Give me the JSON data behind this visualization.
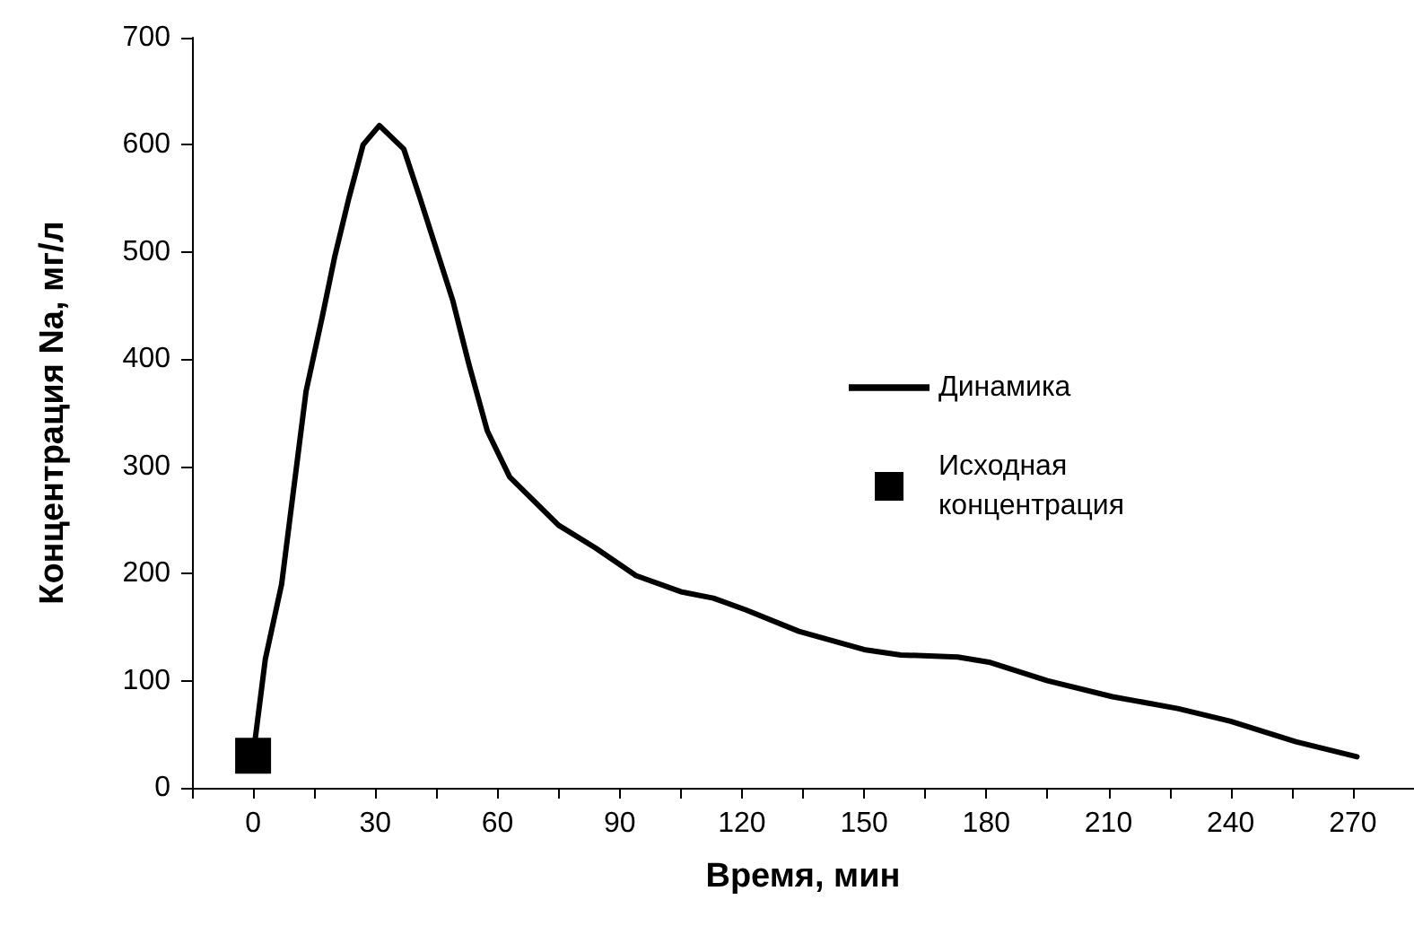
{
  "chart_data": {
    "type": "line",
    "xlabel": "Время, мин",
    "ylabel": "Концентрация Na, мг/л",
    "xlim": [
      -15,
      285
    ],
    "ylim": [
      0,
      700
    ],
    "xticks": [
      {
        "value": -15,
        "label": null
      },
      0,
      {
        "value": 15,
        "label": null
      },
      30,
      {
        "value": 45,
        "label": null
      },
      60,
      {
        "value": 75,
        "label": null
      },
      90,
      {
        "value": 105,
        "label": null
      },
      120,
      {
        "value": 135,
        "label": null
      },
      150,
      {
        "value": 165,
        "label": null
      },
      180,
      {
        "value": 195,
        "label": null
      },
      210,
      {
        "value": 225,
        "label": null
      },
      240,
      {
        "value": 255,
        "label": null
      },
      270
    ],
    "yticks": [
      0,
      100,
      200,
      300,
      400,
      500,
      600,
      700
    ],
    "grid": false,
    "legend": "right",
    "series": [
      {
        "name": "Динамика",
        "color": "#000000",
        "marker": "none",
        "line_style": "solid",
        "x": [
          0,
          3,
          7,
          9,
          13,
          17,
          20,
          23.5,
          27,
          31,
          37,
          41,
          49,
          53,
          57.5,
          63,
          75,
          84,
          94,
          105,
          113,
          121,
          134,
          150,
          159,
          173,
          181,
          195,
          211,
          227,
          240,
          256,
          271
        ],
        "values": [
          30,
          120,
          190,
          250,
          370,
          440,
          495,
          550,
          600,
          618,
          596,
          550,
          455,
          395,
          333,
          290,
          245,
          224,
          198,
          183,
          177,
          166,
          146,
          129,
          124,
          122,
          117,
          100,
          85,
          74,
          62,
          43,
          29
        ]
      },
      {
        "name": "Исходная концентрация",
        "type": "scatter",
        "color": "#000000",
        "marker": "square",
        "x": [
          0
        ],
        "values": [
          30
        ]
      }
    ]
  }
}
